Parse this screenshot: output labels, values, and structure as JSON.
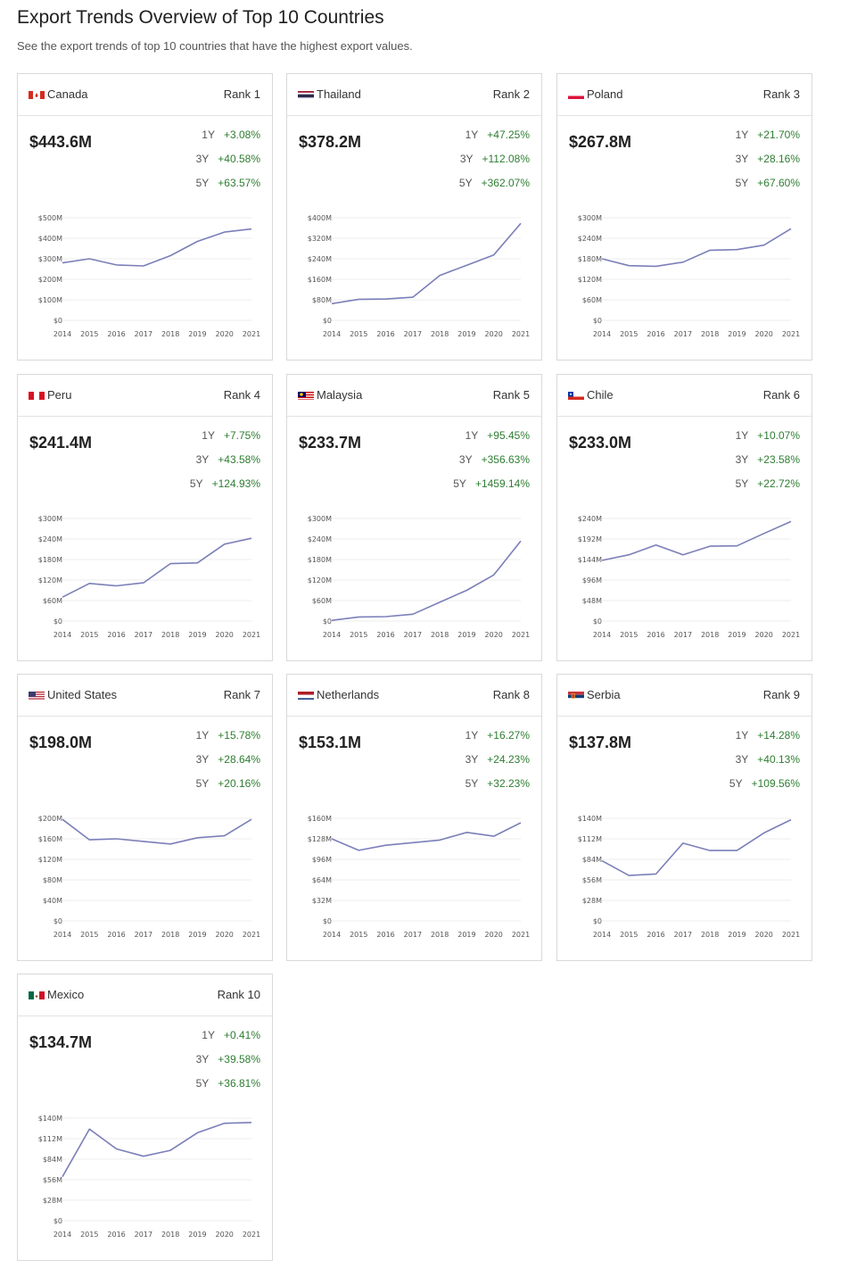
{
  "header": {
    "title": "Export Trends Overview of Top 10 Countries",
    "subtitle": "See the export trends of top 10 countries that have the highest export values."
  },
  "colors": {
    "line": "#7b7fb8",
    "positive": "#2e7d32",
    "grid": "#eeeeee",
    "border": "#d9d9d9"
  },
  "chart_data": [
    {
      "type": "line",
      "country": "Canada",
      "flag": "canada-flag",
      "rank": "Rank 1",
      "value": "$443.6M",
      "growth": [
        {
          "period": "1Y",
          "pct": "+3.08%"
        },
        {
          "period": "3Y",
          "pct": "+40.58%"
        },
        {
          "period": "5Y",
          "pct": "+63.57%"
        }
      ],
      "x": [
        "2014",
        "2015",
        "2016",
        "2017",
        "2018",
        "2019",
        "2020",
        "2021"
      ],
      "yticks": [
        "$0",
        "$100M",
        "$200M",
        "$300M",
        "$400M",
        "$500M"
      ],
      "ylim": [
        0,
        500
      ],
      "values": [
        280,
        300,
        270,
        265,
        315,
        385,
        430,
        445
      ]
    },
    {
      "type": "line",
      "country": "Thailand",
      "flag": "thailand-flag",
      "rank": "Rank 2",
      "value": "$378.2M",
      "growth": [
        {
          "period": "1Y",
          "pct": "+47.25%"
        },
        {
          "period": "3Y",
          "pct": "+112.08%"
        },
        {
          "period": "5Y",
          "pct": "+362.07%"
        }
      ],
      "x": [
        "2014",
        "2015",
        "2016",
        "2017",
        "2018",
        "2019",
        "2020",
        "2021"
      ],
      "yticks": [
        "$0",
        "$80M",
        "$160M",
        "$240M",
        "$320M",
        "$400M"
      ],
      "ylim": [
        0,
        400
      ],
      "values": [
        65,
        82,
        83,
        90,
        175,
        215,
        255,
        378
      ]
    },
    {
      "type": "line",
      "country": "Poland",
      "flag": "poland-flag",
      "rank": "Rank 3",
      "value": "$267.8M",
      "growth": [
        {
          "period": "1Y",
          "pct": "+21.70%"
        },
        {
          "period": "3Y",
          "pct": "+28.16%"
        },
        {
          "period": "5Y",
          "pct": "+67.60%"
        }
      ],
      "x": [
        "2014",
        "2015",
        "2016",
        "2017",
        "2018",
        "2019",
        "2020",
        "2021"
      ],
      "yticks": [
        "$0",
        "$60M",
        "$120M",
        "$180M",
        "$240M",
        "$300M"
      ],
      "ylim": [
        0,
        300
      ],
      "values": [
        180,
        160,
        158,
        170,
        205,
        207,
        220,
        268
      ]
    },
    {
      "type": "line",
      "country": "Peru",
      "flag": "peru-flag",
      "rank": "Rank 4",
      "value": "$241.4M",
      "growth": [
        {
          "period": "1Y",
          "pct": "+7.75%"
        },
        {
          "period": "3Y",
          "pct": "+43.58%"
        },
        {
          "period": "5Y",
          "pct": "+124.93%"
        }
      ],
      "x": [
        "2014",
        "2015",
        "2016",
        "2017",
        "2018",
        "2019",
        "2020",
        "2021"
      ],
      "yticks": [
        "$0",
        "$60M",
        "$120M",
        "$180M",
        "$240M",
        "$300M"
      ],
      "ylim": [
        0,
        300
      ],
      "values": [
        70,
        110,
        103,
        112,
        168,
        170,
        225,
        242
      ]
    },
    {
      "type": "line",
      "country": "Malaysia",
      "flag": "malaysia-flag",
      "rank": "Rank 5",
      "value": "$233.7M",
      "growth": [
        {
          "period": "1Y",
          "pct": "+95.45%"
        },
        {
          "period": "3Y",
          "pct": "+356.63%"
        },
        {
          "period": "5Y",
          "pct": "+1459.14%"
        }
      ],
      "x": [
        "2014",
        "2015",
        "2016",
        "2017",
        "2018",
        "2019",
        "2020",
        "2021"
      ],
      "yticks": [
        "$0",
        "$60M",
        "$120M",
        "$180M",
        "$240M",
        "$300M"
      ],
      "ylim": [
        0,
        300
      ],
      "values": [
        2,
        12,
        13,
        20,
        55,
        90,
        135,
        234
      ]
    },
    {
      "type": "line",
      "country": "Chile",
      "flag": "chile-flag",
      "rank": "Rank 6",
      "value": "$233.0M",
      "growth": [
        {
          "period": "1Y",
          "pct": "+10.07%"
        },
        {
          "period": "3Y",
          "pct": "+23.58%"
        },
        {
          "period": "5Y",
          "pct": "+22.72%"
        }
      ],
      "x": [
        "2014",
        "2015",
        "2016",
        "2017",
        "2018",
        "2019",
        "2020",
        "2021"
      ],
      "yticks": [
        "$0",
        "$48M",
        "$96M",
        "$144M",
        "$192M",
        "$240M"
      ],
      "ylim": [
        0,
        240
      ],
      "values": [
        142,
        155,
        178,
        155,
        175,
        176,
        205,
        233
      ]
    },
    {
      "type": "line",
      "country": "United States",
      "flag": "usa-flag",
      "rank": "Rank 7",
      "value": "$198.0M",
      "growth": [
        {
          "period": "1Y",
          "pct": "+15.78%"
        },
        {
          "period": "3Y",
          "pct": "+28.64%"
        },
        {
          "period": "5Y",
          "pct": "+20.16%"
        }
      ],
      "x": [
        "2014",
        "2015",
        "2016",
        "2017",
        "2018",
        "2019",
        "2020",
        "2021"
      ],
      "yticks": [
        "$0",
        "$40M",
        "$80M",
        "$120M",
        "$160M",
        "$200M"
      ],
      "ylim": [
        0,
        200
      ],
      "values": [
        198,
        158,
        160,
        155,
        150,
        162,
        166,
        198
      ]
    },
    {
      "type": "line",
      "country": "Netherlands",
      "flag": "netherlands-flag",
      "rank": "Rank 8",
      "value": "$153.1M",
      "growth": [
        {
          "period": "1Y",
          "pct": "+16.27%"
        },
        {
          "period": "3Y",
          "pct": "+24.23%"
        },
        {
          "period": "5Y",
          "pct": "+32.23%"
        }
      ],
      "x": [
        "2014",
        "2015",
        "2016",
        "2017",
        "2018",
        "2019",
        "2020",
        "2021"
      ],
      "yticks": [
        "$0",
        "$32M",
        "$64M",
        "$96M",
        "$128M",
        "$160M"
      ],
      "ylim": [
        0,
        160
      ],
      "values": [
        128,
        110,
        118,
        122,
        126,
        138,
        132,
        153
      ]
    },
    {
      "type": "line",
      "country": "Serbia",
      "flag": "serbia-flag",
      "rank": "Rank 9",
      "value": "$137.8M",
      "growth": [
        {
          "period": "1Y",
          "pct": "+14.28%"
        },
        {
          "period": "3Y",
          "pct": "+40.13%"
        },
        {
          "period": "5Y",
          "pct": "+109.56%"
        }
      ],
      "x": [
        "2014",
        "2015",
        "2016",
        "2017",
        "2018",
        "2019",
        "2020",
        "2021"
      ],
      "yticks": [
        "$0",
        "$28M",
        "$56M",
        "$84M",
        "$112M",
        "$140M"
      ],
      "ylim": [
        0,
        140
      ],
      "values": [
        82,
        62,
        64,
        106,
        96,
        96,
        120,
        138
      ]
    },
    {
      "type": "line",
      "country": "Mexico",
      "flag": "mexico-flag",
      "rank": "Rank 10",
      "value": "$134.7M",
      "growth": [
        {
          "period": "1Y",
          "pct": "+0.41%"
        },
        {
          "period": "3Y",
          "pct": "+39.58%"
        },
        {
          "period": "5Y",
          "pct": "+36.81%"
        }
      ],
      "x": [
        "2014",
        "2015",
        "2016",
        "2017",
        "2018",
        "2019",
        "2020",
        "2021"
      ],
      "yticks": [
        "$0",
        "$28M",
        "$56M",
        "$84M",
        "$112M",
        "$140M"
      ],
      "ylim": [
        0,
        140
      ],
      "values": [
        60,
        125,
        98,
        88,
        96,
        120,
        133,
        134
      ]
    }
  ]
}
